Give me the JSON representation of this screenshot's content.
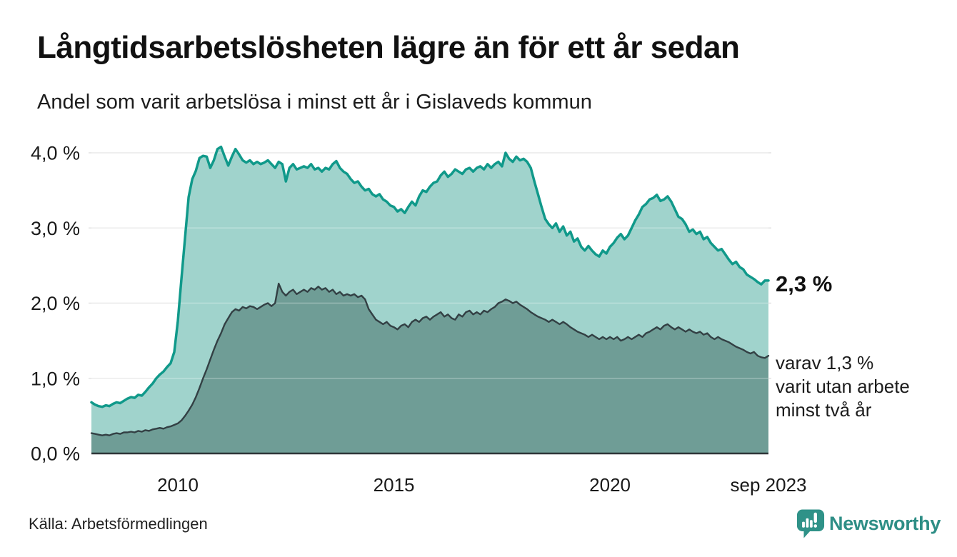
{
  "header": {
    "title": "Långtidsarbetslösheten lägre än för ett år sedan",
    "subtitle": "Andel som varit arbetslösa i minst ett år i Gislaveds kommun"
  },
  "annotations": {
    "latest_value": "2,3 %",
    "secondary_lines": [
      "varav 1,3 %",
      "varit utan arbete",
      "minst två år"
    ]
  },
  "footer": {
    "source": "Källa: Arbetsförmedlingen",
    "logo_text": "Newsworthy"
  },
  "colors": {
    "accent_line": "#10998a",
    "accent_fill": "#a0d3cc",
    "secondary_line": "#334044",
    "secondary_fill": "#6f9d96",
    "grid": "#e2e2e2",
    "grid_overlay": "rgba(255,255,255,0.30)",
    "axis": "#2e3638",
    "text": "#1a1a1a",
    "logo": "#2e8e86"
  },
  "chart_data": {
    "type": "area",
    "title": "Långtidsarbetslösheten lägre än för ett år sedan",
    "subtitle": "Andel som varit arbetslösa i minst ett år i Gislaveds kommun",
    "unit": "%",
    "frequency": "monthly",
    "start": "2008-01",
    "end": "2023-09",
    "ylim": [
      0,
      4.3
    ],
    "grid": true,
    "legend": "none",
    "yticks": [
      {
        "value": 0,
        "label": "0,0 %"
      },
      {
        "value": 1,
        "label": "1,0 %"
      },
      {
        "value": 2,
        "label": "2,0 %"
      },
      {
        "value": 3,
        "label": "3,0 %"
      },
      {
        "value": 4,
        "label": "4,0 %"
      }
    ],
    "xticks": [
      {
        "t": 2010.0,
        "label": "2010"
      },
      {
        "t": 2015.0,
        "label": "2015"
      },
      {
        "t": 2020.0,
        "label": "2020"
      },
      {
        "t": 2023.667,
        "label": "sep 2023"
      }
    ],
    "series": [
      {
        "name": "Arbetslösa minst ett år",
        "latest": 2.3,
        "values": [
          0.68,
          0.65,
          0.63,
          0.62,
          0.64,
          0.63,
          0.66,
          0.68,
          0.67,
          0.7,
          0.73,
          0.75,
          0.74,
          0.78,
          0.77,
          0.82,
          0.88,
          0.93,
          1.0,
          1.05,
          1.09,
          1.15,
          1.2,
          1.35,
          1.76,
          2.33,
          2.87,
          3.41,
          3.65,
          3.76,
          3.93,
          3.96,
          3.95,
          3.8,
          3.9,
          4.05,
          4.08,
          3.95,
          3.83,
          3.95,
          4.05,
          3.98,
          3.9,
          3.87,
          3.9,
          3.85,
          3.88,
          3.85,
          3.87,
          3.9,
          3.85,
          3.8,
          3.88,
          3.85,
          3.62,
          3.8,
          3.85,
          3.78,
          3.8,
          3.82,
          3.8,
          3.85,
          3.78,
          3.8,
          3.75,
          3.8,
          3.78,
          3.85,
          3.89,
          3.8,
          3.75,
          3.72,
          3.65,
          3.6,
          3.62,
          3.55,
          3.5,
          3.52,
          3.45,
          3.42,
          3.45,
          3.38,
          3.35,
          3.3,
          3.28,
          3.22,
          3.25,
          3.2,
          3.28,
          3.35,
          3.3,
          3.42,
          3.5,
          3.48,
          3.55,
          3.6,
          3.62,
          3.7,
          3.75,
          3.68,
          3.72,
          3.78,
          3.75,
          3.72,
          3.78,
          3.8,
          3.75,
          3.8,
          3.82,
          3.78,
          3.85,
          3.8,
          3.85,
          3.88,
          3.82,
          4.0,
          3.92,
          3.88,
          3.95,
          3.9,
          3.92,
          3.88,
          3.8,
          3.62,
          3.45,
          3.28,
          3.12,
          3.05,
          3.0,
          3.06,
          2.95,
          3.02,
          2.9,
          2.95,
          2.82,
          2.86,
          2.75,
          2.7,
          2.76,
          2.7,
          2.65,
          2.62,
          2.7,
          2.66,
          2.75,
          2.8,
          2.87,
          2.92,
          2.85,
          2.9,
          3.0,
          3.1,
          3.18,
          3.28,
          3.32,
          3.38,
          3.4,
          3.44,
          3.36,
          3.38,
          3.42,
          3.35,
          3.25,
          3.15,
          3.12,
          3.05,
          2.95,
          2.98,
          2.92,
          2.95,
          2.85,
          2.88,
          2.8,
          2.75,
          2.7,
          2.72,
          2.65,
          2.58,
          2.52,
          2.55,
          2.48,
          2.45,
          2.38,
          2.35,
          2.32,
          2.28,
          2.25,
          2.3,
          2.3
        ]
      },
      {
        "name": "varav arbetslösa minst två år",
        "latest": 1.3,
        "values": [
          0.27,
          0.26,
          0.25,
          0.24,
          0.25,
          0.24,
          0.26,
          0.27,
          0.26,
          0.28,
          0.28,
          0.29,
          0.28,
          0.3,
          0.29,
          0.31,
          0.3,
          0.32,
          0.33,
          0.34,
          0.33,
          0.35,
          0.36,
          0.38,
          0.4,
          0.44,
          0.5,
          0.57,
          0.65,
          0.75,
          0.87,
          1.0,
          1.12,
          1.25,
          1.38,
          1.5,
          1.6,
          1.72,
          1.8,
          1.88,
          1.92,
          1.9,
          1.95,
          1.93,
          1.96,
          1.95,
          1.92,
          1.95,
          1.98,
          2.0,
          1.96,
          2.0,
          2.26,
          2.15,
          2.1,
          2.15,
          2.18,
          2.12,
          2.15,
          2.18,
          2.15,
          2.2,
          2.18,
          2.22,
          2.18,
          2.2,
          2.15,
          2.18,
          2.12,
          2.15,
          2.1,
          2.12,
          2.1,
          2.12,
          2.08,
          2.1,
          2.05,
          1.92,
          1.85,
          1.78,
          1.75,
          1.72,
          1.75,
          1.7,
          1.68,
          1.65,
          1.7,
          1.72,
          1.68,
          1.75,
          1.78,
          1.75,
          1.8,
          1.82,
          1.78,
          1.82,
          1.85,
          1.88,
          1.82,
          1.85,
          1.8,
          1.78,
          1.85,
          1.82,
          1.88,
          1.9,
          1.85,
          1.88,
          1.85,
          1.9,
          1.88,
          1.92,
          1.95,
          2.0,
          2.02,
          2.05,
          2.03,
          2.0,
          2.02,
          1.98,
          1.95,
          1.92,
          1.88,
          1.85,
          1.82,
          1.8,
          1.78,
          1.75,
          1.78,
          1.75,
          1.72,
          1.75,
          1.72,
          1.68,
          1.65,
          1.62,
          1.6,
          1.58,
          1.55,
          1.58,
          1.55,
          1.52,
          1.55,
          1.52,
          1.55,
          1.52,
          1.55,
          1.5,
          1.52,
          1.55,
          1.52,
          1.55,
          1.58,
          1.55,
          1.6,
          1.62,
          1.65,
          1.68,
          1.65,
          1.7,
          1.72,
          1.68,
          1.65,
          1.68,
          1.65,
          1.62,
          1.65,
          1.62,
          1.6,
          1.62,
          1.58,
          1.6,
          1.55,
          1.52,
          1.55,
          1.52,
          1.5,
          1.48,
          1.45,
          1.42,
          1.4,
          1.38,
          1.35,
          1.33,
          1.35,
          1.3,
          1.28,
          1.27,
          1.3
        ]
      }
    ]
  }
}
